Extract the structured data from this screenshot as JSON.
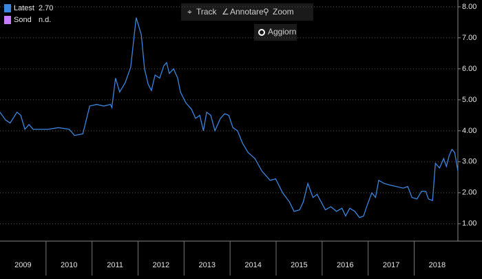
{
  "chart_data": {
    "type": "line",
    "series": [
      {
        "name": "Latest",
        "color": "#3a86e0",
        "x": [
          2009.0,
          2009.12,
          2009.22,
          2009.37,
          2009.45,
          2009.54,
          2009.63,
          2009.72,
          2010.05,
          2010.27,
          2010.5,
          2010.62,
          2010.8,
          2010.95,
          2011.1,
          2011.25,
          2011.4,
          2011.43,
          2011.51,
          2011.6,
          2011.72,
          2011.84,
          2011.96,
          2012.07,
          2012.14,
          2012.22,
          2012.29,
          2012.37,
          2012.47,
          2012.56,
          2012.62,
          2012.68,
          2012.77,
          2012.86,
          2012.92,
          2013.04,
          2013.16,
          2013.25,
          2013.34,
          2013.42,
          2013.49,
          2013.58,
          2013.67,
          2013.79,
          2013.88,
          2013.97,
          2014.06,
          2014.16,
          2014.27,
          2014.39,
          2014.54,
          2014.69,
          2014.87,
          2014.99,
          2015.14,
          2015.29,
          2015.39,
          2015.51,
          2015.59,
          2015.69,
          2015.8,
          2015.89,
          2015.98,
          2016.07,
          2016.19,
          2016.31,
          2016.43,
          2016.51,
          2016.6,
          2016.71,
          2016.81,
          2016.9,
          2016.98,
          2017.08,
          2017.16,
          2017.23,
          2017.35,
          2017.47,
          2017.61,
          2017.76,
          2017.86,
          2017.95,
          2018.06,
          2018.16,
          2018.25,
          2018.31,
          2018.4,
          2018.46,
          2018.55,
          2018.64,
          2018.7,
          2018.76,
          2018.82,
          2018.88,
          2018.95
        ],
        "values": [
          4.6,
          4.35,
          4.25,
          4.6,
          4.5,
          4.05,
          4.2,
          4.05,
          4.05,
          4.1,
          4.05,
          3.85,
          3.9,
          4.8,
          4.85,
          4.8,
          4.85,
          4.75,
          5.7,
          5.25,
          5.55,
          6.05,
          7.65,
          7.1,
          6.0,
          5.5,
          5.3,
          5.8,
          5.7,
          6.1,
          6.2,
          5.85,
          6.0,
          5.7,
          5.25,
          4.9,
          4.7,
          4.4,
          4.5,
          4.0,
          4.6,
          4.5,
          4.0,
          4.4,
          4.55,
          4.5,
          4.1,
          4.0,
          3.6,
          3.3,
          3.1,
          2.7,
          2.4,
          2.45,
          2.0,
          1.7,
          1.4,
          1.45,
          1.7,
          2.3,
          1.85,
          1.95,
          1.7,
          1.45,
          1.55,
          1.4,
          1.5,
          1.25,
          1.5,
          1.4,
          1.2,
          1.25,
          1.6,
          2.0,
          1.85,
          2.4,
          2.3,
          2.25,
          2.2,
          2.15,
          2.2,
          1.85,
          1.8,
          2.05,
          2.05,
          1.8,
          1.75,
          2.95,
          2.8,
          3.1,
          2.85,
          3.2,
          3.4,
          3.3,
          2.7
        ]
      }
    ],
    "legend": [
      {
        "label": "Latest",
        "text": "2.70",
        "color": "#3a86e0"
      },
      {
        "label": "Sond",
        "text": "n.d.",
        "color": "#c77dff"
      }
    ],
    "xlim": [
      2009.0,
      2018.95
    ],
    "xticks": [
      {
        "value": 2009.5,
        "label": "2009"
      },
      {
        "value": 2010.5,
        "label": "2010"
      },
      {
        "value": 2011.5,
        "label": "2011"
      },
      {
        "value": 2012.5,
        "label": "2012"
      },
      {
        "value": 2013.5,
        "label": "2013"
      },
      {
        "value": 2014.5,
        "label": "2014"
      },
      {
        "value": 2015.5,
        "label": "2015"
      },
      {
        "value": 2016.5,
        "label": "2016"
      },
      {
        "value": 2017.5,
        "label": "2017"
      },
      {
        "value": 2018.5,
        "label": "2018"
      }
    ],
    "ylim": [
      0.44,
      8.22
    ],
    "yticks": [
      {
        "value": 1,
        "label": "1.00"
      },
      {
        "value": 2,
        "label": "2.00"
      },
      {
        "value": 3,
        "label": "3.00"
      },
      {
        "value": 4,
        "label": "4.00"
      },
      {
        "value": 5,
        "label": "5.00"
      },
      {
        "value": 6,
        "label": "6.00"
      },
      {
        "value": 7,
        "label": "7.00"
      },
      {
        "value": 8,
        "label": "8.00"
      }
    ],
    "grid": true
  },
  "toolbar": {
    "track": "Track",
    "annotate": "Annotare",
    "zoom": "Zoom",
    "refresh": "Aggiorn"
  }
}
